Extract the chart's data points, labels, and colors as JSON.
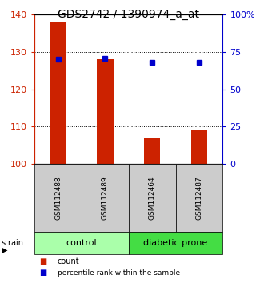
{
  "title": "GDS2742 / 1390974_a_at",
  "samples": [
    "GSM112488",
    "GSM112489",
    "GSM112464",
    "GSM112487"
  ],
  "bar_values": [
    138.0,
    128.0,
    107.0,
    109.0
  ],
  "percentile_values": [
    70.0,
    70.5,
    68.0,
    68.0
  ],
  "baseline": 100,
  "ylim_left": [
    100,
    140
  ],
  "ylim_right": [
    0,
    100
  ],
  "yticks_left": [
    100,
    110,
    120,
    130,
    140
  ],
  "yticks_right": [
    0,
    25,
    50,
    75,
    100
  ],
  "ytick_labels_right": [
    "0",
    "25",
    "50",
    "75",
    "100%"
  ],
  "groups": [
    {
      "label": "control",
      "indices": [
        0,
        1
      ],
      "color": "#aaffaa"
    },
    {
      "label": "diabetic prone",
      "indices": [
        2,
        3
      ],
      "color": "#44dd44"
    }
  ],
  "bar_color": "#cc2200",
  "dot_color": "#0000cc",
  "bar_width": 0.35,
  "left_tick_color": "#cc2200",
  "right_tick_color": "#0000cc",
  "sample_box_color": "#cccccc",
  "background_color": "#ffffff",
  "title_fontsize": 10,
  "tick_fontsize": 8,
  "label_fontsize": 8
}
